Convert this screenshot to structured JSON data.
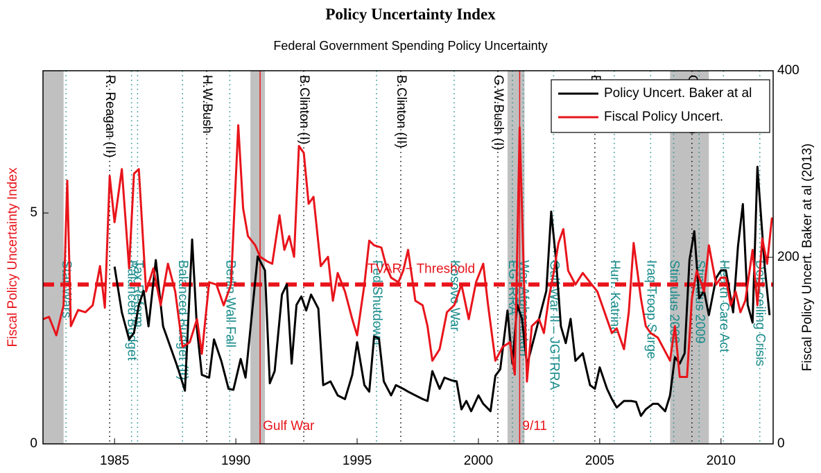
{
  "chart_data": {
    "type": "line",
    "title": "Policy Uncertainty Index",
    "subtitle": "Federal Government Spending Policy Uncertainty",
    "ylabel": "Fiscal Policy Uncertainty Index",
    "y2label": "Fiscal Policy Uncert. Baker at al (2013)",
    "xlim": [
      1982.05,
      2012.15
    ],
    "ylim": [
      0,
      8.08
    ],
    "y2lim": [
      0,
      400
    ],
    "xticks": [
      1985,
      1990,
      1995,
      2000,
      2005,
      2010
    ],
    "yticks": [
      0,
      5
    ],
    "y2ticks": [
      0,
      200,
      400
    ],
    "legend": "upper right",
    "ylabel_color": "#e8141b",
    "series": [
      {
        "name": "Policy Uncert. Baker at al",
        "color": "#000000",
        "axis": "y2",
        "x": [
          1985.0,
          1985.3,
          1985.6,
          1985.8,
          1986.0,
          1986.2,
          1986.4,
          1986.7,
          1987.0,
          1987.3,
          1987.6,
          1987.9,
          1988.2,
          1988.4,
          1988.6,
          1988.9,
          1989.1,
          1989.4,
          1989.7,
          1989.9,
          1990.2,
          1990.4,
          1990.7,
          1990.9,
          1991.2,
          1991.4,
          1991.6,
          1991.9,
          1992.1,
          1992.3,
          1992.5,
          1992.7,
          1992.9,
          1993.1,
          1993.4,
          1993.6,
          1993.9,
          1994.2,
          1994.5,
          1994.8,
          1995.0,
          1995.3,
          1995.5,
          1995.7,
          1995.9,
          1996.1,
          1996.4,
          1996.6,
          1996.9,
          1997.1,
          1997.4,
          1997.7,
          1997.9,
          1998.1,
          1998.4,
          1998.6,
          1998.9,
          1999.1,
          1999.3,
          1999.5,
          1999.7,
          2000.0,
          2000.2,
          2000.5,
          2000.7,
          2000.9,
          2001.2,
          2001.4,
          2001.6,
          2001.8,
          2002.0,
          2002.3,
          2002.5,
          2002.8,
          2003.0,
          2003.2,
          2003.4,
          2003.6,
          2003.8,
          2004.0,
          2004.3,
          2004.6,
          2004.8,
          2005.0,
          2005.3,
          2005.5,
          2005.7,
          2006.0,
          2006.3,
          2006.5,
          2006.7,
          2006.9,
          2007.2,
          2007.4,
          2007.7,
          2007.9,
          2008.1,
          2008.3,
          2008.5,
          2008.7,
          2008.9,
          2009.1,
          2009.3,
          2009.5,
          2009.8,
          2010.0,
          2010.2,
          2010.5,
          2010.7,
          2010.9,
          2011.1,
          2011.3,
          2011.5,
          2011.8,
          2012.0
        ],
        "values": [
          190,
          141,
          112,
          119,
          149,
          164,
          126,
          197,
          126,
          104,
          82,
          57,
          219,
          123,
          74,
          71,
          112,
          89,
          59,
          58,
          91,
          71,
          149,
          201,
          186,
          65,
          78,
          160,
          171,
          86,
          149,
          158,
          143,
          160,
          145,
          63,
          67,
          52,
          48,
          74,
          109,
          63,
          56,
          115,
          113,
          67,
          52,
          63,
          59,
          56,
          52,
          48,
          46,
          78,
          59,
          71,
          68,
          67,
          37,
          46,
          35,
          52,
          43,
          35,
          73,
          80,
          143,
          86,
          149,
          134,
          84,
          114,
          134,
          164,
          249,
          197,
          126,
          108,
          134,
          89,
          97,
          63,
          59,
          82,
          59,
          48,
          39,
          46,
          46,
          45,
          30,
          37,
          43,
          43,
          35,
          52,
          93,
          86,
          97,
          197,
          228,
          156,
          164,
          138,
          178,
          186,
          186,
          141,
          212,
          257,
          149,
          130,
          297,
          190,
          138
        ]
      },
      {
        "name": "Fiscal Policy Uncert.",
        "color": "#e8141b",
        "axis": "y",
        "x": [
          1982.05,
          1982.3,
          1982.6,
          1982.9,
          1983.05,
          1983.2,
          1983.5,
          1983.8,
          1984.1,
          1984.4,
          1984.6,
          1984.8,
          1985.0,
          1985.3,
          1985.6,
          1985.8,
          1986.0,
          1986.3,
          1986.6,
          1986.9,
          1987.2,
          1987.5,
          1987.8,
          1988.1,
          1988.4,
          1988.6,
          1988.9,
          1989.2,
          1989.5,
          1989.8,
          1990.1,
          1990.3,
          1990.5,
          1990.8,
          1991.0,
          1991.3,
          1991.5,
          1991.8,
          1992.0,
          1992.2,
          1992.4,
          1992.6,
          1992.8,
          1993.0,
          1993.2,
          1993.5,
          1993.8,
          1994.0,
          1994.2,
          1994.5,
          1994.8,
          1995.0,
          1995.3,
          1995.5,
          1995.7,
          1996.0,
          1996.2,
          1996.4,
          1996.7,
          1996.9,
          1997.1,
          1997.4,
          1997.7,
          1997.9,
          1998.1,
          1998.4,
          1998.7,
          1999.0,
          1999.3,
          1999.6,
          1999.9,
          2000.2,
          2000.4,
          2000.7,
          2001.0,
          2001.3,
          2001.5,
          2001.7,
          2002.0,
          2002.2,
          2002.5,
          2002.7,
          2002.9,
          2003.1,
          2003.3,
          2003.5,
          2003.7,
          2004.0,
          2004.3,
          2004.6,
          2004.9,
          2005.2,
          2005.5,
          2005.7,
          2006.0,
          2006.2,
          2006.4,
          2006.7,
          2006.9,
          2007.1,
          2007.4,
          2007.6,
          2007.9,
          2008.1,
          2008.3,
          2008.6,
          2008.8,
          2009.0,
          2009.3,
          2009.5,
          2009.8,
          2010.0,
          2010.2,
          2010.4,
          2010.6,
          2010.8,
          2011.0,
          2011.3,
          2011.5,
          2011.7,
          2011.9,
          2012.1
        ],
        "values": [
          2.7,
          2.75,
          2.35,
          3.0,
          5.7,
          2.55,
          2.9,
          2.85,
          3.0,
          3.85,
          2.95,
          5.8,
          4.8,
          5.95,
          3.8,
          5.85,
          5.95,
          3.3,
          3.8,
          3.0,
          3.9,
          3.3,
          2.1,
          2.2,
          2.7,
          1.95,
          3.5,
          3.45,
          3.0,
          3.45,
          6.9,
          5.1,
          4.5,
          4.3,
          4.05,
          3.95,
          3.9,
          4.95,
          4.2,
          4.5,
          4.05,
          6.45,
          6.3,
          5.2,
          5.35,
          3.85,
          4.05,
          3.1,
          3.7,
          3.3,
          2.7,
          2.35,
          3.45,
          4.4,
          4.3,
          4.25,
          3.85,
          3.6,
          3.5,
          3.75,
          4.2,
          3.1,
          3.0,
          2.55,
          1.8,
          2.05,
          2.85,
          3.0,
          3.45,
          2.7,
          3.5,
          3.9,
          3.0,
          1.8,
          2.1,
          2.2,
          1.5,
          6.85,
          1.35,
          2.55,
          2.7,
          2.4,
          3.15,
          3.7,
          4.35,
          4.65,
          3.75,
          3.45,
          3.7,
          3.5,
          3.3,
          2.85,
          2.4,
          2.5,
          2.05,
          2.85,
          4.35,
          3.15,
          2.55,
          2.4,
          2.3,
          2.1,
          1.8,
          2.55,
          1.45,
          1.45,
          3.15,
          3.75,
          3.3,
          4.3,
          3.45,
          3.6,
          3.6,
          3.0,
          3.3,
          2.85,
          3.1,
          4.2,
          3.0,
          4.45,
          3.9,
          4.9
        ]
      }
    ],
    "threshold": {
      "value": 3.45,
      "label": "TVAR − Threshold",
      "color": "#e8141b"
    },
    "shaded": [
      [
        1982.05,
        1982.9
      ],
      [
        1990.6,
        1991.2
      ],
      [
        2001.2,
        2001.9
      ],
      [
        2007.9,
        2009.5
      ]
    ],
    "annotations": [
      {
        "text": "R. Reagan (II)",
        "x": 1984.8,
        "color": "#000000",
        "place": "top"
      },
      {
        "text": "H.W.Bush",
        "x": 1988.8,
        "color": "#000000",
        "place": "top"
      },
      {
        "text": "B.Clinton (I)",
        "x": 1992.8,
        "color": "#000000",
        "place": "top"
      },
      {
        "text": "B.Clinton (II)",
        "x": 1996.8,
        "color": "#000000",
        "place": "top"
      },
      {
        "text": "G.W.Bush (I)",
        "x": 2000.8,
        "color": "#000000",
        "place": "top"
      },
      {
        "text": "Bush (II)",
        "x": 2004.8,
        "color": "#000000",
        "place": "top"
      },
      {
        "text": "Obama (I)",
        "x": 2008.8,
        "color": "#000000",
        "place": "top"
      },
      {
        "text": "Star Wars",
        "x": 1983.0,
        "color": "#1b8c8c",
        "place": "middle"
      },
      {
        "text": "Balanced Budget",
        "x": 1985.7,
        "color": "#1b8c8c",
        "place": "middle"
      },
      {
        "text": "Tax Reform",
        "x": 1985.95,
        "color": "#1b8c8c",
        "place": "middle"
      },
      {
        "text": "Balanced Budget (II)",
        "x": 1987.8,
        "color": "#1b8c8c",
        "place": "middle"
      },
      {
        "text": "Berlin Wall Fall",
        "x": 1989.75,
        "color": "#1b8c8c",
        "place": "middle"
      },
      {
        "text": "Fed Shutdown",
        "x": 1995.8,
        "color": "#1b8c8c",
        "place": "middle"
      },
      {
        "text": "Kosovo War",
        "x": 1999.0,
        "color": "#1b8c8c",
        "place": "middle"
      },
      {
        "text": "EGTRRA",
        "x": 2001.4,
        "color": "#1b8c8c",
        "place": "middle"
      },
      {
        "text": "War Afghanistan",
        "x": 2001.85,
        "color": "#1b8c8c",
        "place": "middle"
      },
      {
        "text": "Gulf War II – JGTRRA",
        "x": 2003.1,
        "color": "#1b8c8c",
        "place": "middle"
      },
      {
        "text": "Hurr. Katrina",
        "x": 2005.6,
        "color": "#1b8c8c",
        "place": "middle"
      },
      {
        "text": "Iraq Troop Surge",
        "x": 2007.1,
        "color": "#1b8c8c",
        "place": "middle"
      },
      {
        "text": "Stimulus 2008",
        "x": 2008.05,
        "color": "#1b8c8c",
        "place": "middle"
      },
      {
        "text": "Stimulus 2009",
        "x": 2009.1,
        "color": "#1b8c8c",
        "place": "middle"
      },
      {
        "text": "Health Care Act",
        "x": 2010.1,
        "color": "#1b8c8c",
        "place": "middle"
      },
      {
        "text": "Debt-ceiling Crisis",
        "x": 2011.6,
        "color": "#1b8c8c",
        "place": "middle"
      },
      {
        "text": "Gulf War",
        "x": 1991.0,
        "color": "#e8141b",
        "place": "bottom"
      },
      {
        "text": "9/11",
        "x": 2001.7,
        "color": "#e8141b",
        "place": "bottom"
      }
    ]
  }
}
